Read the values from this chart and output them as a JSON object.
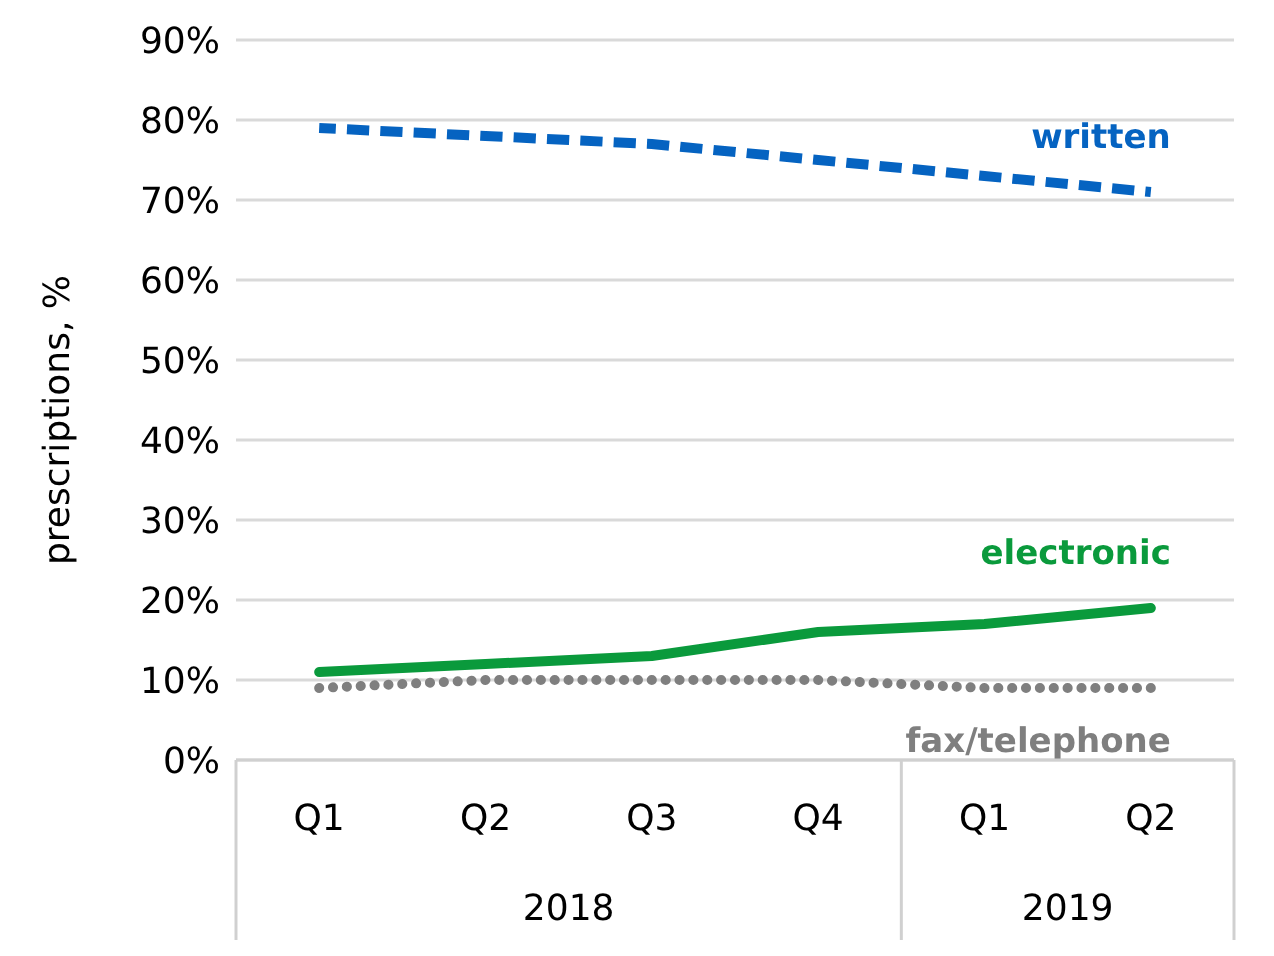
{
  "chart_data": {
    "type": "line",
    "ylabel": "prescriptions, %",
    "categories": [
      "Q1",
      "Q2",
      "Q3",
      "Q4",
      "Q1",
      "Q2"
    ],
    "annotations": [
      "2018",
      "2019"
    ],
    "series": [
      {
        "name": "written",
        "color": "#0563c1",
        "line_style": "dashed",
        "values": [
          79,
          78,
          77,
          75,
          73,
          71
        ]
      },
      {
        "name": "electronic",
        "color": "#0a9a3c",
        "line_style": "solid",
        "values": [
          11,
          12,
          13,
          16,
          17,
          19
        ]
      },
      {
        "name": "fax/telephone",
        "color": "#7f7f7f",
        "line_style": "dotted",
        "values": [
          9,
          10,
          10,
          10,
          9,
          9
        ]
      }
    ],
    "ylim": [
      0,
      90
    ],
    "yticks": [
      {
        "value": 0,
        "label": "0%"
      },
      {
        "value": 10,
        "label": "10%"
      },
      {
        "value": 20,
        "label": "20%"
      },
      {
        "value": 30,
        "label": "30%"
      },
      {
        "value": 40,
        "label": "40%"
      },
      {
        "value": 50,
        "label": "50%"
      },
      {
        "value": 60,
        "label": "60%"
      },
      {
        "value": 70,
        "label": "70%"
      },
      {
        "value": 80,
        "label": "80%"
      },
      {
        "value": 90,
        "label": "90%"
      }
    ],
    "grid": "y",
    "legend": false,
    "marker": "none"
  }
}
